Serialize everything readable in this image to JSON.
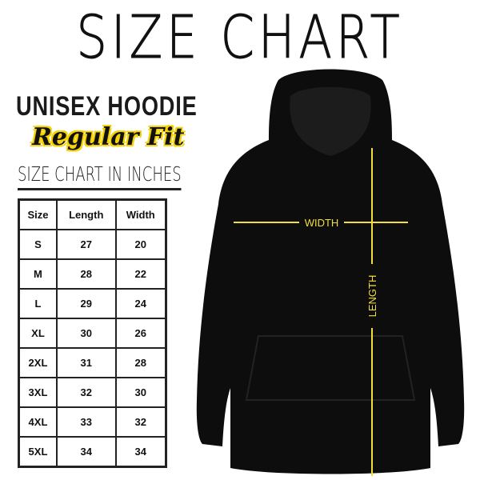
{
  "title": "SIZE CHART",
  "product": "UNISEX HOODIE",
  "fit": "Regular Fit",
  "unit_caption": "SIZE CHART IN INCHES",
  "table": {
    "headers": [
      "Size",
      "Length",
      "Width"
    ],
    "rows": [
      [
        "S",
        "27",
        "20"
      ],
      [
        "M",
        "28",
        "22"
      ],
      [
        "L",
        "29",
        "24"
      ],
      [
        "XL",
        "30",
        "26"
      ],
      [
        "2XL",
        "31",
        "28"
      ],
      [
        "3XL",
        "32",
        "30"
      ],
      [
        "4XL",
        "33",
        "32"
      ],
      [
        "5XL",
        "34",
        "34"
      ]
    ]
  },
  "diagram": {
    "width_label": "WIDTH",
    "length_label": "LENGTH",
    "line_color": "#f2de3a",
    "garment_color": "#0d0d0d"
  }
}
